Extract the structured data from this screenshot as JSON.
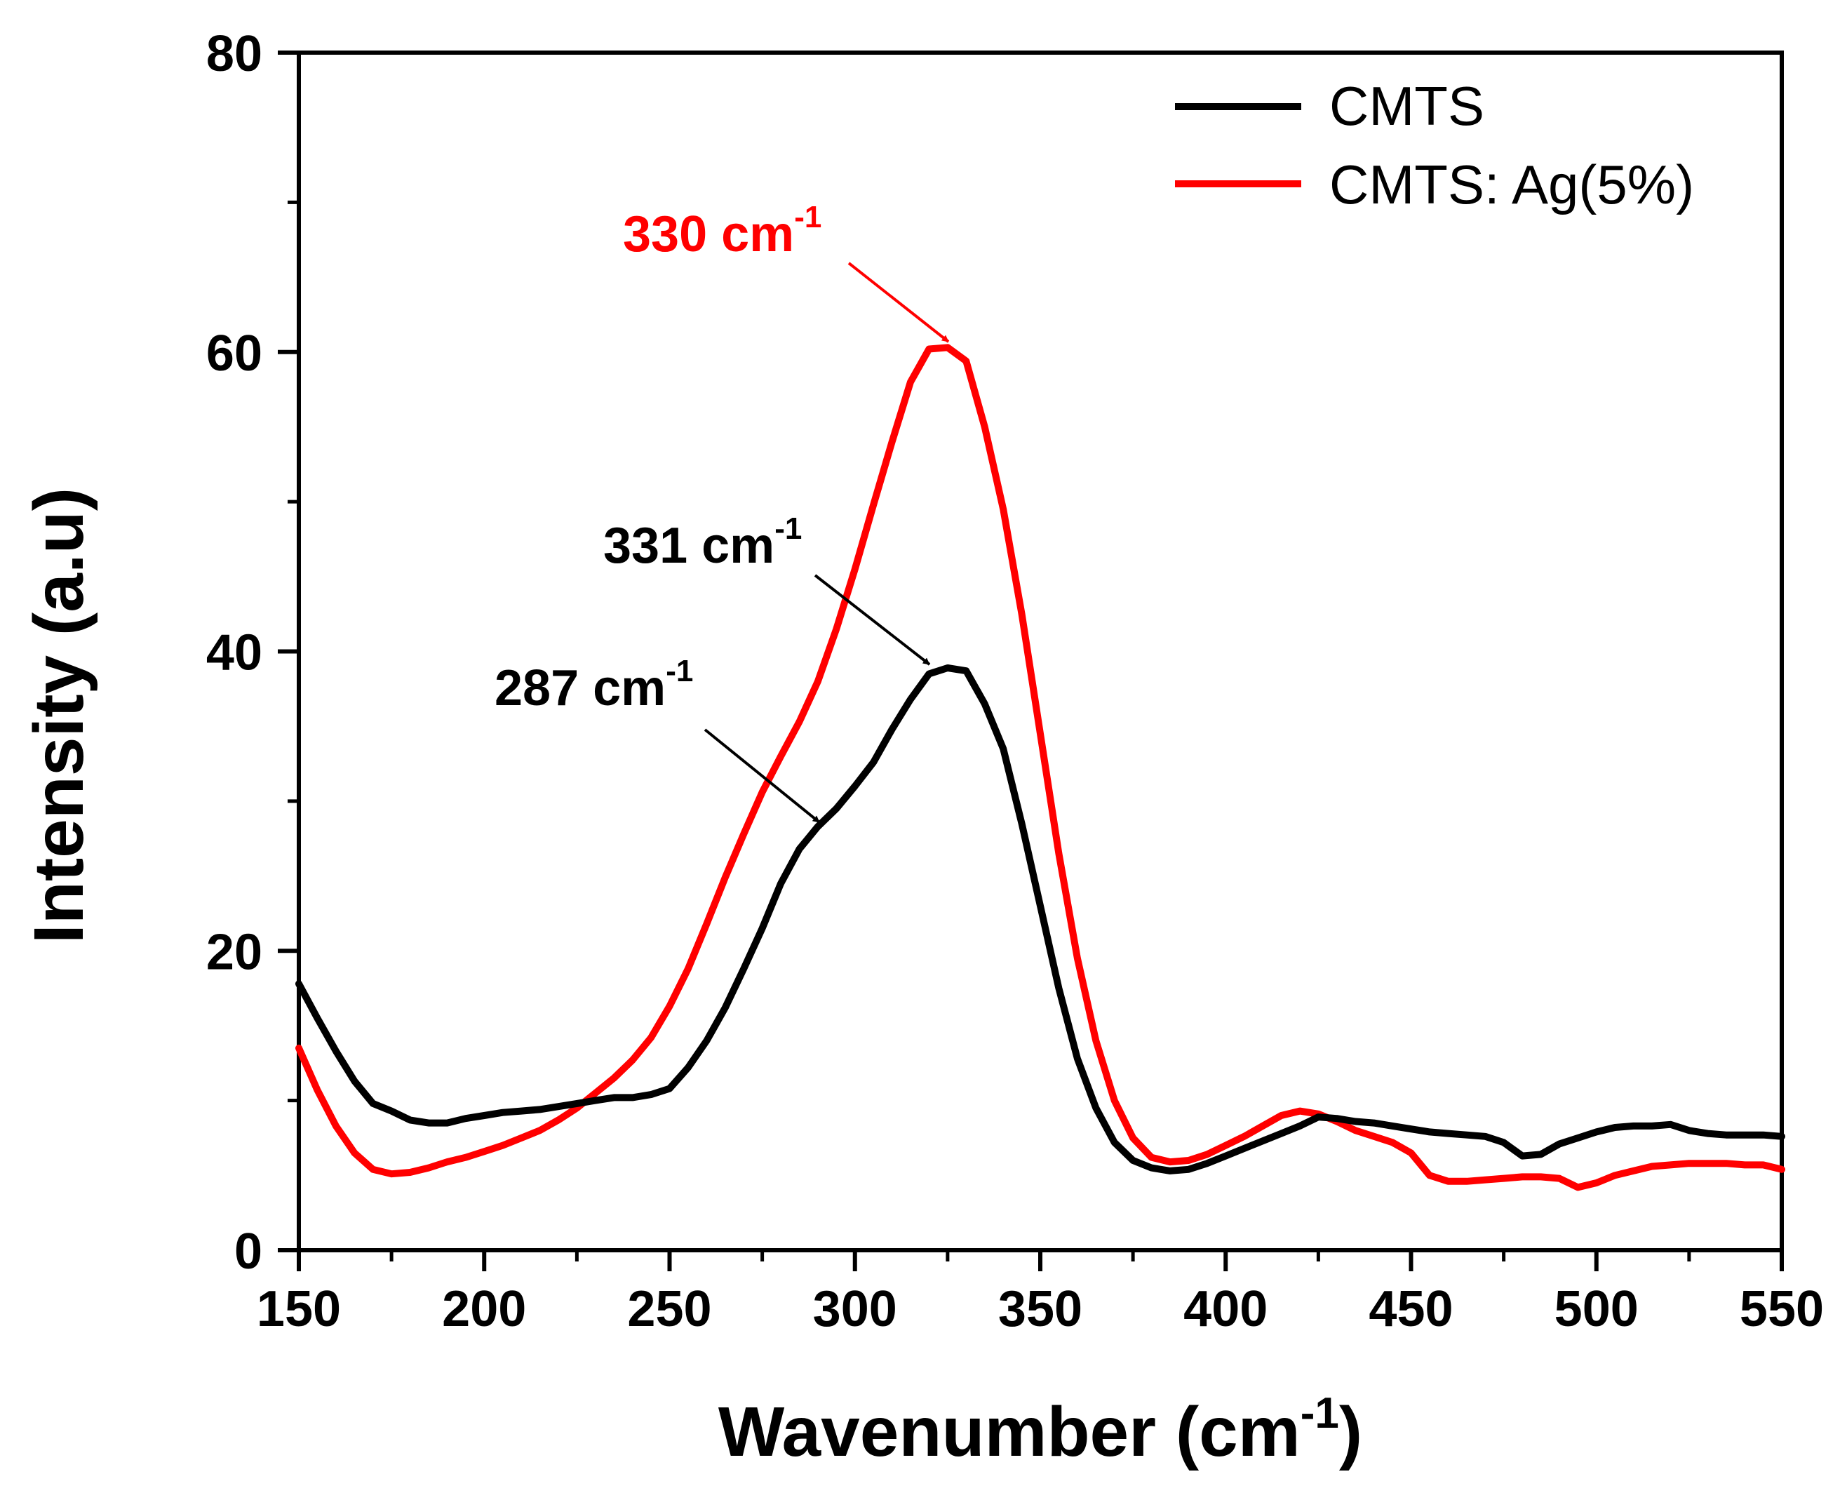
{
  "chart_data": {
    "type": "line",
    "title": "",
    "xlabel": "Wavenumber (cm",
    "xlabel_sup": "-1",
    "xlabel_end": ")",
    "ylabel": "Intensity (a.u)",
    "xlim": [
      150,
      550
    ],
    "ylim": [
      0,
      80
    ],
    "xticks": [
      150,
      200,
      250,
      300,
      350,
      400,
      450,
      500,
      550
    ],
    "yticks": [
      0,
      20,
      40,
      60,
      80
    ],
    "grid": false,
    "legend_position": "top-right",
    "series": [
      {
        "name": "CMTS",
        "color": "#000000",
        "x": [
          150,
          155,
          160,
          165,
          170,
          175,
          180,
          185,
          190,
          195,
          200,
          205,
          210,
          215,
          220,
          225,
          230,
          235,
          240,
          245,
          250,
          255,
          260,
          265,
          270,
          275,
          280,
          285,
          290,
          295,
          300,
          305,
          310,
          315,
          320,
          325,
          330,
          335,
          340,
          345,
          350,
          355,
          360,
          365,
          370,
          375,
          380,
          385,
          390,
          395,
          400,
          405,
          410,
          415,
          420,
          425,
          430,
          435,
          440,
          445,
          450,
          455,
          460,
          465,
          470,
          475,
          480,
          485,
          490,
          495,
          500,
          505,
          510,
          515,
          520,
          525,
          530,
          535,
          540,
          545,
          550
        ],
        "y": [
          17.8,
          15.5,
          13.3,
          11.3,
          9.8,
          9.3,
          8.7,
          8.5,
          8.5,
          8.8,
          9.0,
          9.2,
          9.3,
          9.4,
          9.6,
          9.8,
          10.0,
          10.2,
          10.2,
          10.4,
          10.8,
          12.2,
          14.0,
          16.2,
          18.8,
          21.5,
          24.5,
          26.8,
          28.3,
          29.5,
          31.0,
          32.6,
          34.8,
          36.8,
          38.5,
          38.9,
          38.7,
          36.5,
          33.5,
          28.5,
          23.0,
          17.5,
          12.8,
          9.5,
          7.2,
          6.0,
          5.5,
          5.3,
          5.4,
          5.8,
          6.3,
          6.8,
          7.3,
          7.8,
          8.3,
          8.9,
          8.8,
          8.6,
          8.5,
          8.3,
          8.1,
          7.9,
          7.8,
          7.7,
          7.6,
          7.2,
          6.3,
          6.4,
          7.1,
          7.5,
          7.9,
          8.2,
          8.3,
          8.3,
          8.4,
          8.0,
          7.8,
          7.7,
          7.7,
          7.7,
          7.6
        ]
      },
      {
        "name": "CMTS: Ag(5%)",
        "color": "#ff0000",
        "x": [
          150,
          155,
          160,
          165,
          170,
          175,
          180,
          185,
          190,
          195,
          200,
          205,
          210,
          215,
          220,
          225,
          230,
          235,
          240,
          245,
          250,
          255,
          260,
          265,
          270,
          275,
          280,
          285,
          290,
          295,
          300,
          305,
          310,
          315,
          320,
          325,
          330,
          335,
          340,
          345,
          350,
          355,
          360,
          365,
          370,
          375,
          380,
          385,
          390,
          395,
          400,
          405,
          410,
          415,
          420,
          425,
          430,
          435,
          440,
          445,
          450,
          455,
          460,
          465,
          470,
          475,
          480,
          485,
          490,
          495,
          500,
          505,
          510,
          515,
          520,
          525,
          530,
          535,
          540,
          545,
          550
        ],
        "y": [
          13.5,
          10.7,
          8.3,
          6.5,
          5.4,
          5.1,
          5.2,
          5.5,
          5.9,
          6.2,
          6.6,
          7.0,
          7.5,
          8.0,
          8.7,
          9.5,
          10.5,
          11.5,
          12.7,
          14.2,
          16.3,
          18.8,
          21.8,
          24.9,
          27.8,
          30.6,
          33.0,
          35.3,
          38.0,
          41.5,
          45.5,
          49.8,
          54.0,
          58.0,
          60.2,
          60.3,
          59.4,
          55.0,
          49.5,
          42.5,
          34.5,
          26.5,
          19.5,
          14.0,
          10.0,
          7.5,
          6.2,
          5.9,
          6.0,
          6.4,
          7.0,
          7.6,
          8.3,
          9.0,
          9.3,
          9.1,
          8.6,
          8.0,
          7.6,
          7.2,
          6.5,
          5.0,
          4.6,
          4.6,
          4.7,
          4.8,
          4.9,
          4.9,
          4.8,
          4.2,
          4.5,
          5.0,
          5.3,
          5.6,
          5.7,
          5.8,
          5.8,
          5.8,
          5.7,
          5.7,
          5.4
        ]
      }
    ],
    "annotations": [
      {
        "text": "330 cm",
        "sup": "-1",
        "color": "#ff0000",
        "x": 330,
        "y": 60.3
      },
      {
        "text": "331 cm",
        "sup": "-1",
        "color": "#000000",
        "x": 331,
        "y": 38.9
      },
      {
        "text": "287 cm",
        "sup": "-1",
        "color": "#000000",
        "x": 287,
        "y": 28.0
      }
    ]
  }
}
